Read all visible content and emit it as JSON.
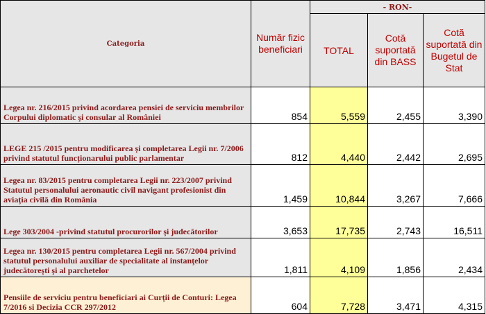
{
  "header": {
    "category": "Categoria",
    "beneficiaries": "Număr fizic beneficiari",
    "currency": "- RON-",
    "total": "TOTAL",
    "bass_share": "Cotă suportată din BASS",
    "state_share": "Cotă suportată din Bugetul de Stat"
  },
  "rows": [
    {
      "category": "Legea nr. 216/2015 privind acordarea pensiei de serviciu membrilor Corpului diplomatic şi consular al României",
      "beneficiaries": "854",
      "total": "5,559",
      "bass": "2,455",
      "state": "3,390"
    },
    {
      "category": "LEGE 215 /2015  pentru modificarea și completarea Legii nr. 7/2006 privind statutul funcționarului public parlamentar",
      "beneficiaries": "812",
      "total": "4,440",
      "bass": "2,442",
      "state": "2,695"
    },
    {
      "category": " Legea nr. 83/2015 pentru completarea Legii nr. 223/2007 privind Statutul personalului aeronautic civil navigant profesionist din aviația civilă din România",
      "beneficiaries": "1,459",
      "total": "10,844",
      "bass": "3,267",
      "state": "7,666"
    },
    {
      "category": "Lege 303/2004 -privind statutul procurorilor şi judecătorilor",
      "beneficiaries": "3,653",
      "total": "17,735",
      "bass": "2,743",
      "state": "16,511"
    },
    {
      "category": "Legea nr. 130/2015 pentru completarea Legii nr. 567/2004 privind statutul personalului auxiliar de specialitate al instanţelor judecătoreşti şi al parchetelor",
      "beneficiaries": "1,811",
      "total": "4,109",
      "bass": "1,856",
      "state": "2,434"
    },
    {
      "category": "Pensiile de serviciu pentru beneficiari ai Curții de Conturi: Legea 7/2016 si  Decizia CCR 297/2012",
      "beneficiaries": "604",
      "total": "7,728",
      "bass": "3,471",
      "state": "4,315"
    }
  ]
}
